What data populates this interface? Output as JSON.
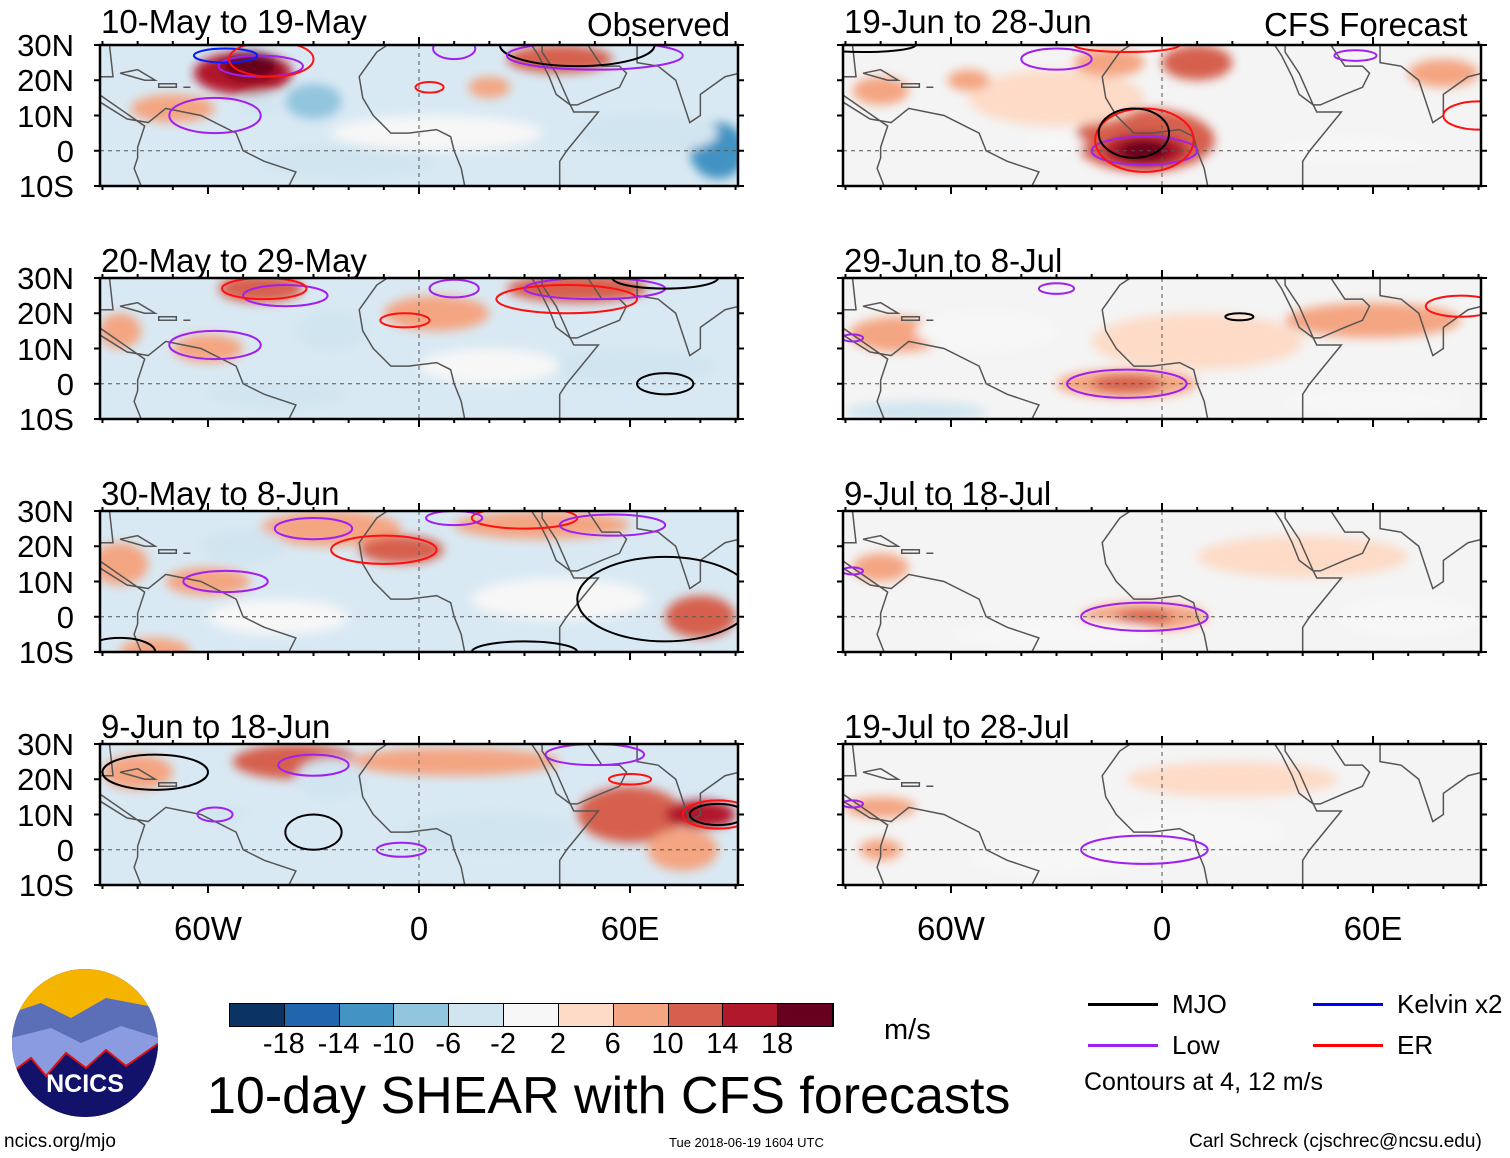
{
  "headers": {
    "observed": "Observed",
    "forecast": "CFS Forecast"
  },
  "lat_labels": [
    "30N",
    "20N",
    "10N",
    "0",
    "10S"
  ],
  "lon_labels": [
    "60W",
    "0",
    "60E"
  ],
  "panels": [
    {
      "title": "10-May to 19-May",
      "col": 0,
      "row": 0,
      "shading": [
        [
          -50,
          22,
          14,
          6,
          14
        ],
        [
          -48,
          24,
          8,
          4,
          18
        ],
        [
          -70,
          12,
          12,
          4,
          6
        ],
        [
          -45,
          13,
          6,
          3,
          -6
        ],
        [
          -30,
          14,
          8,
          5,
          -10
        ],
        [
          40,
          26,
          15,
          4,
          12
        ],
        [
          85,
          0,
          8,
          8,
          -14
        ],
        [
          65,
          5,
          20,
          6,
          -6
        ],
        [
          -20,
          -3,
          25,
          5,
          -6
        ],
        [
          20,
          18,
          6,
          3,
          6
        ],
        [
          5,
          5,
          30,
          5,
          -2
        ]
      ],
      "contours": [
        {
          "type": "low",
          "lon": -58,
          "lat": 10,
          "rx": 13,
          "ry": 5
        },
        {
          "type": "low",
          "lon": -45,
          "lat": 24,
          "rx": 12,
          "ry": 3
        },
        {
          "type": "kelvin",
          "lon": -55,
          "lat": 27,
          "rx": 9,
          "ry": 2
        },
        {
          "type": "er",
          "lon": -42,
          "lat": 26,
          "rx": 12,
          "ry": 5
        },
        {
          "type": "er",
          "lon": 3,
          "lat": 18,
          "rx": 4,
          "ry": 1.5
        },
        {
          "type": "mjo",
          "lon": 45,
          "lat": 30,
          "rx": 22,
          "ry": 6
        },
        {
          "type": "low",
          "lon": 50,
          "lat": 27,
          "rx": 25,
          "ry": 4
        },
        {
          "type": "low",
          "lon": 10,
          "lat": 29,
          "rx": 6,
          "ry": 3
        }
      ]
    },
    {
      "title": "20-May to 29-May",
      "col": 0,
      "row": 1,
      "shading": [
        [
          -45,
          27,
          12,
          4,
          10
        ],
        [
          -60,
          10,
          10,
          4,
          8
        ],
        [
          -85,
          15,
          6,
          5,
          6
        ],
        [
          5,
          20,
          15,
          5,
          6
        ],
        [
          45,
          27,
          20,
          4,
          10
        ],
        [
          -25,
          15,
          10,
          6,
          -6
        ],
        [
          60,
          5,
          25,
          5,
          -6
        ],
        [
          -40,
          -3,
          20,
          4,
          -6
        ],
        [
          20,
          5,
          20,
          5,
          -2
        ]
      ],
      "contours": [
        {
          "type": "low",
          "lon": -58,
          "lat": 11,
          "rx": 13,
          "ry": 4
        },
        {
          "type": "low",
          "lon": -38,
          "lat": 25,
          "rx": 12,
          "ry": 3
        },
        {
          "type": "er",
          "lon": -44,
          "lat": 27,
          "rx": 12,
          "ry": 3
        },
        {
          "type": "low",
          "lon": 10,
          "lat": 27,
          "rx": 7,
          "ry": 2.5
        },
        {
          "type": "er",
          "lon": -4,
          "lat": 18,
          "rx": 7,
          "ry": 2
        },
        {
          "type": "er",
          "lon": 42,
          "lat": 24,
          "rx": 20,
          "ry": 4
        },
        {
          "type": "low",
          "lon": 50,
          "lat": 27,
          "rx": 20,
          "ry": 3
        },
        {
          "type": "mjo",
          "lon": 70,
          "lat": 30,
          "rx": 15,
          "ry": 3
        },
        {
          "type": "mjo",
          "lon": 70,
          "lat": 0,
          "rx": 8,
          "ry": 3
        }
      ]
    },
    {
      "title": "30-May to 8-Jun",
      "col": 0,
      "row": 2,
      "shading": [
        [
          -25,
          25,
          20,
          5,
          6
        ],
        [
          -5,
          19,
          12,
          4,
          10
        ],
        [
          -60,
          10,
          12,
          4,
          6
        ],
        [
          -85,
          15,
          8,
          6,
          6
        ],
        [
          80,
          0,
          10,
          6,
          10
        ],
        [
          -75,
          -10,
          10,
          4,
          8
        ],
        [
          35,
          26,
          25,
          4,
          8
        ],
        [
          -50,
          20,
          12,
          5,
          -6
        ],
        [
          40,
          5,
          25,
          6,
          -2
        ],
        [
          -40,
          0,
          20,
          5,
          -2
        ]
      ],
      "contours": [
        {
          "type": "low",
          "lon": -30,
          "lat": 25,
          "rx": 11,
          "ry": 3
        },
        {
          "type": "er",
          "lon": -10,
          "lat": 19,
          "rx": 15,
          "ry": 4
        },
        {
          "type": "low",
          "lon": -55,
          "lat": 10,
          "rx": 12,
          "ry": 3
        },
        {
          "type": "er",
          "lon": 30,
          "lat": 28,
          "rx": 15,
          "ry": 3
        },
        {
          "type": "low",
          "lon": 10,
          "lat": 28,
          "rx": 8,
          "ry": 2
        },
        {
          "type": "low",
          "lon": 55,
          "lat": 26,
          "rx": 15,
          "ry": 3
        },
        {
          "type": "mjo",
          "lon": 70,
          "lat": 5,
          "rx": 25,
          "ry": 12
        },
        {
          "type": "mjo",
          "lon": -85,
          "lat": -10,
          "rx": 10,
          "ry": 4
        },
        {
          "type": "mjo",
          "lon": 30,
          "lat": -10,
          "rx": 15,
          "ry": 3
        }
      ]
    },
    {
      "title": "9-Jun to 18-Jun",
      "col": 0,
      "row": 3,
      "shading": [
        [
          -35,
          25,
          18,
          5,
          10
        ],
        [
          10,
          25,
          30,
          4,
          6
        ],
        [
          60,
          10,
          15,
          8,
          10
        ],
        [
          80,
          10,
          10,
          4,
          14
        ],
        [
          -55,
          10,
          6,
          3,
          -6
        ],
        [
          -25,
          20,
          10,
          6,
          -6
        ],
        [
          20,
          5,
          25,
          6,
          -6
        ],
        [
          75,
          0,
          10,
          6,
          6
        ],
        [
          -80,
          22,
          10,
          5,
          6
        ]
      ],
      "contours": [
        {
          "type": "low",
          "lon": -30,
          "lat": 24,
          "rx": 10,
          "ry": 3
        },
        {
          "type": "low",
          "lon": -58,
          "lat": 10,
          "rx": 5,
          "ry": 2
        },
        {
          "type": "low",
          "lon": -5,
          "lat": 0,
          "rx": 7,
          "ry": 2
        },
        {
          "type": "low",
          "lon": 50,
          "lat": 27,
          "rx": 14,
          "ry": 3
        },
        {
          "type": "er",
          "lon": 60,
          "lat": 20,
          "rx": 6,
          "ry": 1.5
        },
        {
          "type": "er",
          "lon": 85,
          "lat": 10,
          "rx": 10,
          "ry": 4
        },
        {
          "type": "mjo",
          "lon": -30,
          "lat": 5,
          "rx": 8,
          "ry": 5
        },
        {
          "type": "mjo",
          "lon": -75,
          "lat": 22,
          "rx": 15,
          "ry": 5
        },
        {
          "type": "mjo",
          "lon": 85,
          "lat": 10,
          "rx": 8,
          "ry": 3
        }
      ]
    },
    {
      "title": "19-Jun to 28-Jun",
      "col": 1,
      "row": 0,
      "shading": [
        [
          -5,
          3,
          20,
          9,
          10
        ],
        [
          -5,
          0,
          12,
          5,
          14
        ],
        [
          -5,
          0,
          7,
          3,
          18
        ],
        [
          -30,
          15,
          25,
          8,
          2
        ],
        [
          -80,
          17,
          8,
          4,
          6
        ],
        [
          -55,
          20,
          6,
          3,
          6
        ],
        [
          10,
          25,
          10,
          5,
          10
        ],
        [
          -15,
          25,
          10,
          4,
          6
        ],
        [
          -30,
          2,
          8,
          3,
          -2
        ],
        [
          55,
          0,
          20,
          4,
          -2
        ],
        [
          80,
          22,
          10,
          4,
          6
        ]
      ],
      "contours": [
        {
          "type": "low",
          "lon": -5,
          "lat": 0,
          "rx": 15,
          "ry": 4
        },
        {
          "type": "er",
          "lon": -5,
          "lat": 3,
          "rx": 14,
          "ry": 9
        },
        {
          "type": "mjo",
          "lon": -8,
          "lat": 5,
          "rx": 10,
          "ry": 7
        },
        {
          "type": "low",
          "lon": -30,
          "lat": 26,
          "rx": 10,
          "ry": 3
        },
        {
          "type": "er",
          "lon": -10,
          "lat": 30,
          "rx": 15,
          "ry": 2
        },
        {
          "type": "low",
          "lon": 55,
          "lat": 27,
          "rx": 6,
          "ry": 1.5
        },
        {
          "type": "er",
          "lon": 90,
          "lat": 10,
          "rx": 10,
          "ry": 4
        },
        {
          "type": "mjo",
          "lon": -85,
          "lat": 30,
          "rx": 15,
          "ry": 2
        }
      ]
    },
    {
      "title": "29-Jun to 8-Jul",
      "col": 1,
      "row": 1,
      "shading": [
        [
          -10,
          0,
          20,
          4,
          6
        ],
        [
          -10,
          0,
          10,
          2.5,
          10
        ],
        [
          -75,
          14,
          14,
          5,
          8
        ],
        [
          60,
          18,
          25,
          5,
          6
        ],
        [
          10,
          12,
          30,
          8,
          2
        ],
        [
          -70,
          -8,
          20,
          3,
          -6
        ],
        [
          -50,
          15,
          20,
          6,
          -2
        ],
        [
          60,
          -5,
          25,
          4,
          -2
        ]
      ],
      "contours": [
        {
          "type": "low",
          "lon": -10,
          "lat": 0,
          "rx": 17,
          "ry": 4
        },
        {
          "type": "low",
          "lon": -30,
          "lat": 27,
          "rx": 5,
          "ry": 1.5
        },
        {
          "type": "mjo",
          "lon": 22,
          "lat": 19,
          "rx": 4,
          "ry": 1
        },
        {
          "type": "er",
          "lon": 85,
          "lat": 22,
          "rx": 10,
          "ry": 3
        },
        {
          "type": "low",
          "lon": -88,
          "lat": 13,
          "rx": 3,
          "ry": 1
        }
      ]
    },
    {
      "title": "9-Jul to 18-Jul",
      "col": 1,
      "row": 2,
      "shading": [
        [
          -5,
          0,
          18,
          4,
          6
        ],
        [
          -5,
          0,
          8,
          2,
          10
        ],
        [
          -80,
          14,
          8,
          4,
          6
        ],
        [
          40,
          17,
          30,
          6,
          2
        ],
        [
          -30,
          -5,
          30,
          4,
          -2
        ],
        [
          70,
          0,
          20,
          6,
          -2
        ]
      ],
      "contours": [
        {
          "type": "low",
          "lon": -5,
          "lat": 0,
          "rx": 18,
          "ry": 4
        },
        {
          "type": "low",
          "lon": -88,
          "lat": 13,
          "rx": 3,
          "ry": 1
        }
      ]
    },
    {
      "title": "19-Jul to 28-Jul",
      "col": 1,
      "row": 3,
      "shading": [
        [
          -80,
          12,
          10,
          3,
          6
        ],
        [
          -80,
          0,
          6,
          3,
          6
        ],
        [
          20,
          20,
          30,
          5,
          2
        ],
        [
          10,
          5,
          25,
          6,
          -2
        ],
        [
          -30,
          -3,
          25,
          4,
          -2
        ]
      ],
      "contours": [
        {
          "type": "low",
          "lon": -5,
          "lat": 0,
          "rx": 18,
          "ry": 4
        },
        {
          "type": "low",
          "lon": -88,
          "lat": 13,
          "rx": 3,
          "ry": 1
        }
      ]
    }
  ],
  "colorbar": {
    "colors": [
      "#0b3464",
      "#2166ac",
      "#4393c3",
      "#92c5de",
      "#d1e5f0",
      "#f7f7f7",
      "#fddbc7",
      "#f4a582",
      "#d6604d",
      "#b2182b",
      "#67001f"
    ],
    "labels": [
      "-18",
      "-14",
      "-10",
      "-6",
      "-2",
      "2",
      "6",
      "10",
      "14",
      "18"
    ],
    "units": "m/s"
  },
  "legend": {
    "items": [
      {
        "key": "mjo",
        "label": "MJO",
        "color": "#000000"
      },
      {
        "key": "kelvin",
        "label": "Kelvin x2",
        "color": "#0000ff"
      },
      {
        "key": "low",
        "label": "Low",
        "color": "#a020f0"
      },
      {
        "key": "er",
        "label": "ER",
        "color": "#ff0000"
      }
    ],
    "note": "Contours at 4, 12 m/s"
  },
  "title": "10-day SHEAR with CFS forecasts",
  "logo_text": "NCICS",
  "footer": {
    "left": "ncics.org/mjo",
    "center": "Tue 2018-06-19 1604 UTC",
    "right": "Carl Schreck (cjschrec@ncsu.edu)"
  }
}
